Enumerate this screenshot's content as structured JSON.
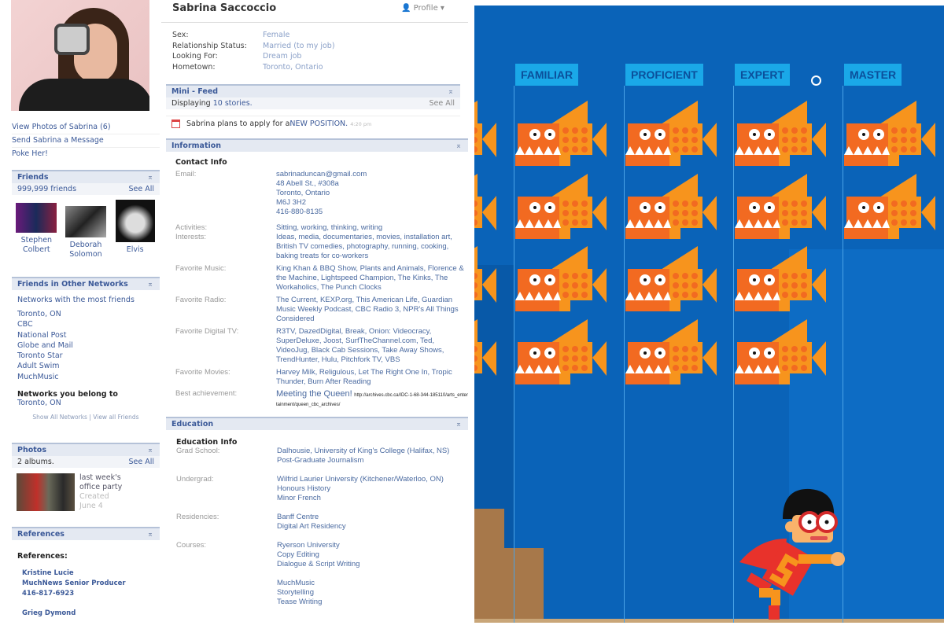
{
  "profile": {
    "name": "Sabrina Saccoccio",
    "profile_menu": "Profile",
    "links": [
      "View Photos of Sabrina (6)",
      "Send Sabrina a Message",
      "Poke Her!"
    ],
    "basic": [
      {
        "k": "Sex:",
        "v": "Female"
      },
      {
        "k": "Relationship Status:",
        "v": "Married (to my job)"
      },
      {
        "k": "Looking For:",
        "v": "Dream job"
      },
      {
        "k": "Hometown:",
        "v": "Toronto, Ontario"
      }
    ],
    "friends": {
      "title": "Friends",
      "count": "999,999 friends",
      "see_all": "See All",
      "people": [
        "Stephen Colbert",
        "Deborah Solomon",
        "Elvis"
      ]
    },
    "networks": {
      "title": "Friends in Other Networks",
      "subtitle": "Networks with the most friends",
      "items": [
        "Toronto, ON",
        "CBC",
        "National Post",
        "Globe and Mail",
        "Toronto Star",
        "Adult Swim",
        "MuchMusic"
      ],
      "belong_title": "Networks you belong to",
      "belong": "Toronto, ON",
      "show_all": "Show All Networks",
      "view_all": "View all Friends",
      "sep": "|"
    },
    "photos": {
      "title": "Photos",
      "count": "2 albums.",
      "see_all": "See All",
      "album": "last week's office party",
      "created": "Created",
      "date": "June 4"
    },
    "references": {
      "title": "References",
      "heading": "References:",
      "ref1": [
        "Kristine Lucie",
        "MuchNews Senior Producer",
        "416-817-6923"
      ],
      "ref2": "Grieg Dymond"
    },
    "minifeed": {
      "title": "Mini - Feed",
      "count_prefix": "Displaying ",
      "count": "10 stories.",
      "see_all": "See All",
      "story_text": "Sabrina plans to apply for a ",
      "story_link": "NEW POSITION.",
      "story_time": "4:20 pm"
    },
    "information": {
      "title": "Information",
      "contact_title": "Contact Info",
      "rows": [
        {
          "k": "Email:",
          "v": [
            "sabrinaduncan@gmail.com",
            "48 Abell St., #308a",
            "Toronto, Ontario",
            "M6J 3H2",
            "416-880-8135"
          ]
        },
        {
          "k": "Activities:",
          "v": [
            "Sitting, working, thinking, writing"
          ]
        },
        {
          "k": "Interests:",
          "v": [
            "Ideas, media, documentaries, movies, installation art, British TV comedies, photography, running, cooking, baking treats for co-workers"
          ]
        },
        {
          "k": "Favorite Music:",
          "v": [
            "King Khan & BBQ Show, Plants and Animals, Florence & the Machine, Lightspeed Champion, The Kinks, The Workaholics, The Punch Clocks"
          ]
        },
        {
          "k": "Favorite Radio:",
          "v": [
            "The Current, KEXP.org, This American Life, Guardian Music Weekly Podcast, CBC Radio 3, NPR's All Things Considered"
          ]
        },
        {
          "k": "Favorite Digital TV:",
          "v": [
            "R3TV, DazedDigital, Break, Onion: Videocracy, SuperDeluxe, Joost, SurfTheChannel.com, Ted, VideoJug, Black Cab Sessions, Take Away Shows, TrendHunter, Hulu, Pitchfork TV, VBS"
          ]
        },
        {
          "k": "Favorite Movies:",
          "v": [
            "Harvey Milk, Religulous, Let The Right One In, Tropic Thunder, Burn After Reading"
          ]
        }
      ],
      "achievement_k": "Best achievement:",
      "achievement_v": "Meeting the Queen!",
      "achievement_url": "http://archives.cbc.ca/IDC-1-68-344-185110/arts_entertainment/queen_cbc_archives/"
    },
    "education": {
      "title": "Education",
      "info_title": "Education Info",
      "rows": [
        {
          "k": "Grad School:",
          "v": [
            "Dalhousie, University of King's College (Halifax, NS)",
            "Post-Graduate Journalism"
          ]
        },
        {
          "k": "Undergrad:",
          "v": [
            "Wilfrid Laurier University (Kitchener/Waterloo, ON)",
            "Honours History",
            "Minor French"
          ]
        },
        {
          "k": "Residencies:",
          "v": [
            "Banff Centre",
            "Digital Art Residency"
          ]
        },
        {
          "k": "Courses:",
          "v": [
            "Ryerson University",
            "Copy Editing",
            "Dialogue & Script Writing",
            "",
            "MuchMusic",
            "Storytelling",
            "Tease Writing"
          ]
        }
      ]
    }
  },
  "game": {
    "levels": [
      "FAMILIAR",
      "PROFICIENT",
      "EXPERT",
      "MASTER"
    ],
    "fish_per_column": [
      4,
      4,
      4,
      4,
      2
    ],
    "colors": {
      "background": "#0a63b8",
      "label": "#1aa8e8",
      "fish_head": "#f26a21",
      "fish_scales": "#f7941d",
      "hero_cape": "#e8322b"
    }
  }
}
